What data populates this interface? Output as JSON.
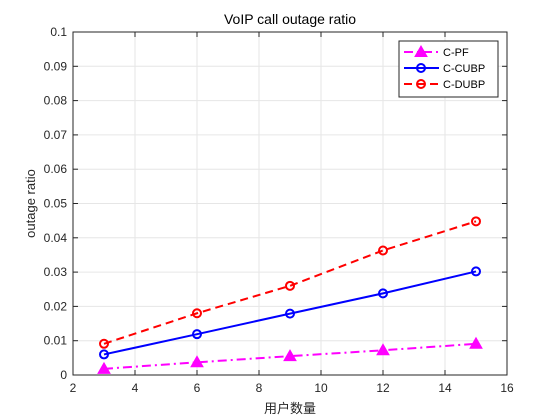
{
  "chart_data": {
    "type": "line",
    "title": "VoIP call outage ratio",
    "xlabel": "用户数量",
    "ylabel": "outage ratio",
    "xlim": [
      2,
      16
    ],
    "ylim": [
      0,
      0.1
    ],
    "x_ticks": [
      "2",
      "4",
      "6",
      "8",
      "10",
      "12",
      "14",
      "16"
    ],
    "y_ticks": [
      "0",
      "0.01",
      "0.02",
      "0.03",
      "0.04",
      "0.05",
      "0.06",
      "0.07",
      "0.08",
      "0.09",
      "0.1"
    ],
    "grid": true,
    "legend_position": "top-right",
    "x": [
      3,
      6,
      9,
      12,
      15
    ],
    "series": [
      {
        "name": "C-PF",
        "values": [
          0.0018,
          0.0037,
          0.0055,
          0.0072,
          0.0091
        ],
        "color": "#ff00ff",
        "marker": "triangle",
        "linestyle": "dash-dot"
      },
      {
        "name": "C-CUBP",
        "values": [
          0.006,
          0.0119,
          0.0179,
          0.0238,
          0.0302
        ],
        "color": "#0000ff",
        "marker": "circle",
        "linestyle": "solid"
      },
      {
        "name": "C-DUBP",
        "values": [
          0.0091,
          0.018,
          0.026,
          0.0363,
          0.0448
        ],
        "color": "#ff0000",
        "marker": "circle",
        "linestyle": "dashed"
      }
    ]
  }
}
